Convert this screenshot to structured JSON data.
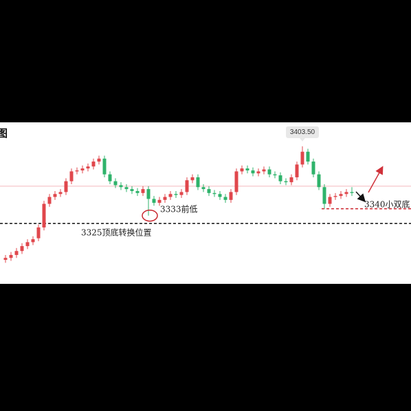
{
  "chart_data": {
    "type": "candlestick",
    "title": "图",
    "up_color": "#e0474c",
    "down_color": "#2fb36b",
    "ylim": [
      3265,
      3423
    ],
    "open": [
      3288,
      3290,
      3293,
      3297,
      3302,
      3306,
      3310,
      3321,
      3345,
      3352,
      3355,
      3357,
      3368,
      3378,
      3379,
      3381,
      3383,
      3388,
      3391,
      3375,
      3368,
      3364,
      3362,
      3360,
      3358,
      3356,
      3360,
      3350,
      3346,
      3349,
      3352,
      3355,
      3354,
      3357,
      3369,
      3372,
      3362,
      3360,
      3356,
      3355,
      3352,
      3349,
      3357,
      3378,
      3381,
      3379,
      3376,
      3378,
      3380,
      3375,
      3374,
      3368,
      3367,
      3372,
      3385,
      3398,
      3388,
      3375,
      3362,
      3345,
      3352,
      3353,
      3355,
      3357
    ],
    "high": [
      3293,
      3296,
      3300,
      3305,
      3309,
      3312,
      3324,
      3348,
      3355,
      3358,
      3360,
      3371,
      3381,
      3382,
      3384,
      3386,
      3391,
      3394,
      3394,
      3378,
      3371,
      3367,
      3365,
      3363,
      3361,
      3363,
      3363,
      3353,
      3352,
      3355,
      3358,
      3358,
      3360,
      3372,
      3375,
      3375,
      3365,
      3363,
      3359,
      3358,
      3355,
      3360,
      3381,
      3384,
      3384,
      3382,
      3381,
      3383,
      3383,
      3378,
      3377,
      3371,
      3375,
      3388,
      3403.5,
      3401,
      3391,
      3378,
      3365,
      3355,
      3356,
      3358,
      3360,
      3362
    ],
    "low": [
      3285,
      3287,
      3290,
      3294,
      3299,
      3303,
      3307,
      3318,
      3342,
      3349,
      3352,
      3354,
      3365,
      3375,
      3376,
      3378,
      3380,
      3385,
      3372,
      3365,
      3361,
      3359,
      3357,
      3355,
      3353,
      3353,
      3333,
      3343,
      3343,
      3346,
      3349,
      3351,
      3351,
      3354,
      3366,
      3359,
      3357,
      3353,
      3352,
      3349,
      3346,
      3346,
      3354,
      3375,
      3376,
      3373,
      3373,
      3375,
      3372,
      3371,
      3365,
      3364,
      3364,
      3369,
      3382,
      3385,
      3372,
      3359,
      3340,
      3342,
      3349,
      3350,
      3352,
      3353
    ],
    "close": [
      3290,
      3293,
      3297,
      3302,
      3306,
      3309,
      3321,
      3345,
      3352,
      3355,
      3357,
      3368,
      3378,
      3379,
      3381,
      3383,
      3388,
      3391,
      3375,
      3368,
      3364,
      3362,
      3360,
      3358,
      3356,
      3360,
      3350,
      3346,
      3349,
      3352,
      3355,
      3354,
      3357,
      3369,
      3372,
      3362,
      3360,
      3356,
      3355,
      3352,
      3349,
      3357,
      3378,
      3381,
      3379,
      3376,
      3378,
      3380,
      3375,
      3374,
      3368,
      3367,
      3372,
      3385,
      3398,
      3388,
      3375,
      3362,
      3345,
      3352,
      3353,
      3355,
      3357,
      3356
    ],
    "price_line": {
      "value": 3363,
      "color": "#f4b8bd"
    },
    "levels": [
      {
        "value": 3325,
        "label": "3325顶底转换位置",
        "color": "#222222"
      },
      {
        "value": 3340,
        "label": "3340小双底",
        "color": "#d0313a"
      }
    ],
    "annotations": {
      "peak": "3403.50",
      "prior_low": "3333前低"
    }
  }
}
